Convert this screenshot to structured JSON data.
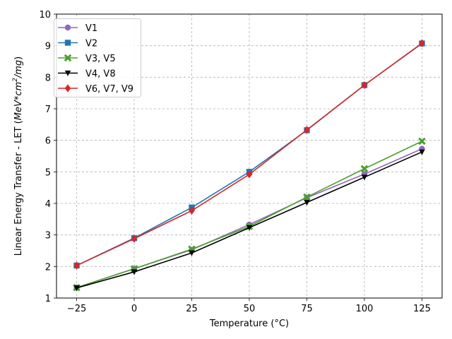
{
  "chart_data": {
    "type": "line",
    "title": "",
    "xlabel": "Temperature (°C)",
    "ylabel_main": "Linear Energy Transfer - LET (",
    "ylabel_unit": "MeV*cm",
    "ylabel_sup": "2",
    "ylabel_unit_tail": "/mg",
    "ylabel_close": ")",
    "x": [
      -25,
      0,
      25,
      50,
      75,
      100,
      125
    ],
    "xticks": [
      "−25",
      "0",
      "25",
      "50",
      "75",
      "100",
      "125"
    ],
    "xlim": [
      -33.75,
      133.75
    ],
    "yticks": [
      "1",
      "2",
      "3",
      "4",
      "5",
      "6",
      "7",
      "8",
      "9",
      "10"
    ],
    "ylim": [
      1,
      10
    ],
    "grid": true,
    "legend_position": "top-left",
    "series": [
      {
        "name": "V1",
        "color": "#9467bd",
        "marker": "circle",
        "values": [
          1.33,
          1.93,
          2.53,
          3.33,
          4.18,
          4.93,
          5.73
        ]
      },
      {
        "name": "V2",
        "color": "#1f77b4",
        "marker": "square",
        "values": [
          2.03,
          2.9,
          3.87,
          5.0,
          6.32,
          7.75,
          9.07
        ]
      },
      {
        "name": "V3, V5",
        "color": "#4aa02c",
        "marker": "x",
        "values": [
          1.33,
          1.93,
          2.55,
          3.27,
          4.2,
          5.1,
          5.97
        ]
      },
      {
        "name": "V4, V8",
        "color": "#000000",
        "marker": "triangle-down",
        "values": [
          1.32,
          1.83,
          2.43,
          3.23,
          4.03,
          4.83,
          5.63
        ]
      },
      {
        "name": "V6, V7, V9",
        "color": "#d62728",
        "marker": "diamond",
        "values": [
          2.03,
          2.88,
          3.77,
          4.92,
          6.33,
          7.75,
          9.08
        ]
      }
    ]
  }
}
